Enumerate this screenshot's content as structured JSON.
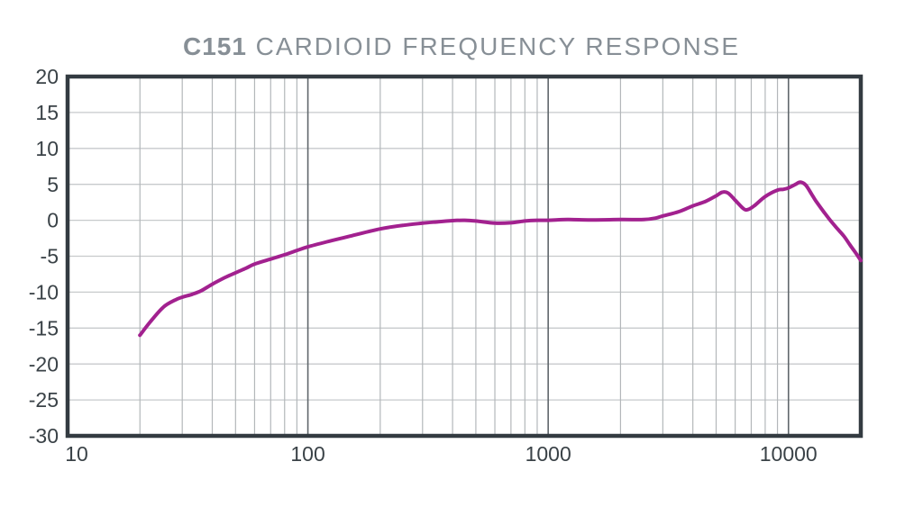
{
  "title": {
    "model": "C151",
    "rest": " CARDIOID FREQUENCY RESPONSE",
    "full": "C151 CARDIOID FREQUENCY RESPONSE"
  },
  "colors": {
    "background": "#ffffff",
    "curve": "#a2218f",
    "plot_border": "#333b41",
    "major_grid": "#60676c",
    "minor_grid": "#b3b7ba",
    "horizontal_grid": "#c7cacc",
    "tick_label": "#3a4247",
    "title": "#878f96"
  },
  "chart_data": {
    "type": "line",
    "title": "C151 CARDIOID FREQUENCY RESPONSE",
    "xlabel": "",
    "ylabel": "",
    "x_scale": "log",
    "y_unit": "dB",
    "x_unit": "Hz",
    "xlim": [
      10,
      20000
    ],
    "ylim": [
      -30,
      20
    ],
    "grid": true,
    "x_tick_values": [
      10,
      100,
      1000,
      10000
    ],
    "x_tick_labels": [
      "10",
      "100",
      "1000",
      "10000"
    ],
    "y_tick_values": [
      20,
      15,
      10,
      5,
      0,
      -5,
      -10,
      -15,
      -20,
      -25,
      -30
    ],
    "y_tick_labels": [
      "20",
      "15",
      "10",
      "5",
      "0",
      "-5",
      "-10",
      "-15",
      "-20",
      "-25",
      "-30"
    ],
    "x_minor_gridlines": [
      20,
      30,
      40,
      50,
      60,
      70,
      80,
      90,
      200,
      300,
      400,
      500,
      600,
      700,
      800,
      900,
      2000,
      3000,
      4000,
      5000,
      6000,
      7000,
      8000,
      9000
    ],
    "x_major_gridlines": [
      100,
      1000,
      10000
    ],
    "series": [
      {
        "name": "cardioid-frequency-response",
        "color": "#a2218f",
        "stroke_width": 4,
        "points": [
          [
            20,
            -16.0
          ],
          [
            22,
            -14.2
          ],
          [
            25,
            -12.1
          ],
          [
            28,
            -11.1
          ],
          [
            30,
            -10.7
          ],
          [
            33,
            -10.3
          ],
          [
            36,
            -9.8
          ],
          [
            40,
            -8.9
          ],
          [
            45,
            -8.0
          ],
          [
            50,
            -7.3
          ],
          [
            55,
            -6.7
          ],
          [
            60,
            -6.1
          ],
          [
            70,
            -5.4
          ],
          [
            80,
            -4.8
          ],
          [
            90,
            -4.2
          ],
          [
            100,
            -3.7
          ],
          [
            120,
            -3.0
          ],
          [
            150,
            -2.2
          ],
          [
            200,
            -1.2
          ],
          [
            250,
            -0.7
          ],
          [
            300,
            -0.4
          ],
          [
            350,
            -0.2
          ],
          [
            400,
            -0.05
          ],
          [
            450,
            0.0
          ],
          [
            500,
            -0.1
          ],
          [
            600,
            -0.4
          ],
          [
            700,
            -0.35
          ],
          [
            800,
            -0.1
          ],
          [
            900,
            0.0
          ],
          [
            1000,
            0.0
          ],
          [
            1200,
            0.1
          ],
          [
            1500,
            0.05
          ],
          [
            2000,
            0.1
          ],
          [
            2500,
            0.1
          ],
          [
            2800,
            0.3
          ],
          [
            3000,
            0.6
          ],
          [
            3500,
            1.2
          ],
          [
            4000,
            2.0
          ],
          [
            4500,
            2.6
          ],
          [
            5000,
            3.4
          ],
          [
            5300,
            3.9
          ],
          [
            5600,
            3.8
          ],
          [
            6000,
            2.8
          ],
          [
            6500,
            1.6
          ],
          [
            6800,
            1.5
          ],
          [
            7200,
            2.0
          ],
          [
            8000,
            3.3
          ],
          [
            9000,
            4.2
          ],
          [
            9500,
            4.3
          ],
          [
            10000,
            4.5
          ],
          [
            10700,
            5.0
          ],
          [
            11200,
            5.3
          ],
          [
            11800,
            4.9
          ],
          [
            12500,
            3.6
          ],
          [
            13000,
            2.7
          ],
          [
            14000,
            1.2
          ],
          [
            15000,
            -0.1
          ],
          [
            16000,
            -1.2
          ],
          [
            17000,
            -2.2
          ],
          [
            18000,
            -3.4
          ],
          [
            19000,
            -4.5
          ],
          [
            20000,
            -5.6
          ]
        ]
      }
    ]
  }
}
